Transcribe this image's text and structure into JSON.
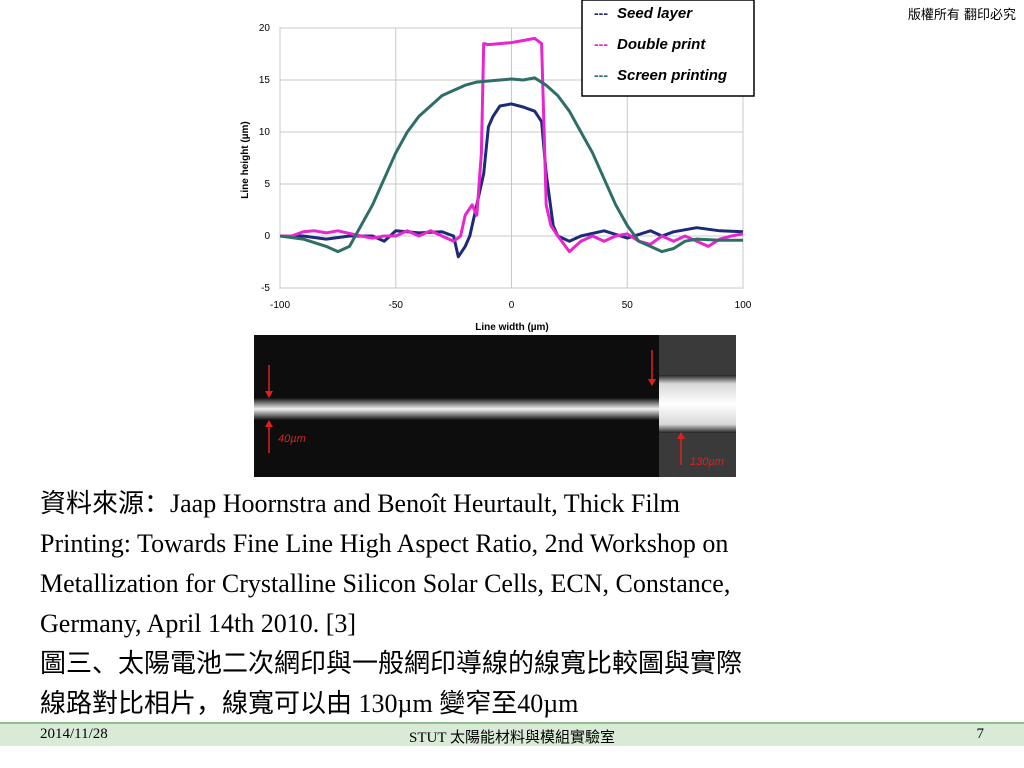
{
  "copyright": "版權所有 翻印必究",
  "chart_data": {
    "type": "line",
    "xlabel": "Line width (µm)",
    "ylabel": "Line height (µm)",
    "xlim": [
      -100,
      100
    ],
    "ylim": [
      -5,
      20
    ],
    "x_ticks": [
      -100,
      -50,
      0,
      50,
      100
    ],
    "y_ticks": [
      -5,
      0,
      5,
      10,
      15,
      20
    ],
    "grid": true,
    "legend_position": "top-right",
    "series": [
      {
        "name": "Seed layer",
        "color": "#1c2a78",
        "points": [
          [
            -100,
            0
          ],
          [
            -90,
            0
          ],
          [
            -80,
            -0.3
          ],
          [
            -70,
            0
          ],
          [
            -60,
            0
          ],
          [
            -55,
            -0.5
          ],
          [
            -50,
            0.5
          ],
          [
            -40,
            0.3
          ],
          [
            -30,
            0.4
          ],
          [
            -25,
            0
          ],
          [
            -23,
            -2
          ],
          [
            -20,
            -1
          ],
          [
            -18,
            0
          ],
          [
            -15,
            3
          ],
          [
            -12,
            6
          ],
          [
            -10,
            10.5
          ],
          [
            -8,
            11.5
          ],
          [
            -5,
            12.5
          ],
          [
            0,
            12.7
          ],
          [
            5,
            12.4
          ],
          [
            10,
            12
          ],
          [
            13,
            11
          ],
          [
            15,
            6
          ],
          [
            18,
            1
          ],
          [
            20,
            0
          ],
          [
            25,
            -0.5
          ],
          [
            30,
            0
          ],
          [
            40,
            0.5
          ],
          [
            50,
            -0.2
          ],
          [
            60,
            0.5
          ],
          [
            65,
            0
          ],
          [
            70,
            0.4
          ],
          [
            80,
            0.8
          ],
          [
            90,
            0.5
          ],
          [
            100,
            0.4
          ]
        ]
      },
      {
        "name": "Double print",
        "color": "#e627cf",
        "points": [
          [
            -100,
            0
          ],
          [
            -95,
            0
          ],
          [
            -90,
            0.4
          ],
          [
            -85,
            0.5
          ],
          [
            -80,
            0.3
          ],
          [
            -75,
            0.5
          ],
          [
            -65,
            0
          ],
          [
            -60,
            -0.2
          ],
          [
            -55,
            0
          ],
          [
            -50,
            0
          ],
          [
            -45,
            0.5
          ],
          [
            -40,
            0
          ],
          [
            -35,
            0.5
          ],
          [
            -30,
            0
          ],
          [
            -25,
            -0.5
          ],
          [
            -22,
            0
          ],
          [
            -20,
            2
          ],
          [
            -17,
            3
          ],
          [
            -15,
            2
          ],
          [
            -13,
            8
          ],
          [
            -12,
            18.5
          ],
          [
            -10,
            18.4
          ],
          [
            -5,
            18.5
          ],
          [
            0,
            18.6
          ],
          [
            5,
            18.8
          ],
          [
            10,
            19
          ],
          [
            13,
            18.5
          ],
          [
            15,
            3
          ],
          [
            17,
            1
          ],
          [
            20,
            0
          ],
          [
            25,
            -1.5
          ],
          [
            30,
            -0.5
          ],
          [
            35,
            0
          ],
          [
            40,
            -0.5
          ],
          [
            45,
            0
          ],
          [
            50,
            0.2
          ],
          [
            55,
            -0.5
          ],
          [
            60,
            -0.8
          ],
          [
            65,
            0
          ],
          [
            70,
            -0.5
          ],
          [
            75,
            0
          ],
          [
            80,
            -0.5
          ],
          [
            85,
            -1
          ],
          [
            90,
            -0.3
          ],
          [
            95,
            0
          ],
          [
            100,
            0.2
          ]
        ]
      },
      {
        "name": "Screen printing",
        "color": "#2e6e66",
        "points": [
          [
            -100,
            0
          ],
          [
            -90,
            -0.3
          ],
          [
            -80,
            -1
          ],
          [
            -75,
            -1.5
          ],
          [
            -70,
            -1
          ],
          [
            -65,
            1
          ],
          [
            -60,
            3
          ],
          [
            -55,
            5.5
          ],
          [
            -50,
            8
          ],
          [
            -45,
            10
          ],
          [
            -40,
            11.5
          ],
          [
            -35,
            12.5
          ],
          [
            -30,
            13.5
          ],
          [
            -25,
            14
          ],
          [
            -20,
            14.5
          ],
          [
            -15,
            14.8
          ],
          [
            -10,
            14.9
          ],
          [
            -5,
            15
          ],
          [
            0,
            15.1
          ],
          [
            5,
            15
          ],
          [
            10,
            15.2
          ],
          [
            15,
            14.5
          ],
          [
            20,
            13.5
          ],
          [
            25,
            12
          ],
          [
            30,
            10
          ],
          [
            35,
            8
          ],
          [
            40,
            5.5
          ],
          [
            45,
            3
          ],
          [
            50,
            1
          ],
          [
            55,
            -0.5
          ],
          [
            60,
            -1
          ],
          [
            65,
            -1.5
          ],
          [
            70,
            -1.2
          ],
          [
            75,
            -0.5
          ],
          [
            80,
            -0.3
          ],
          [
            90,
            -0.4
          ],
          [
            100,
            -0.4
          ]
        ]
      }
    ]
  },
  "photo": {
    "label_left": "40µm",
    "label_right": "130µm"
  },
  "caption": {
    "line1": "資料來源：Jaap Hoornstra and Benoît Heurtault, Thick Film",
    "line2": "Printing: Towards Fine Line High Aspect Ratio, 2nd Workshop on",
    "line3": "Metallization for Crystalline Silicon Solar Cells, ECN, Constance,",
    "line4": "Germany, April 14th 2010. [3]",
    "line5": "圖三、太陽電池二次網印與一般網印導線的線寬比較圖與實際",
    "line6": "線路對比相片，線寬可以由 130µm 變窄至40µm"
  },
  "footer": {
    "date": "2014/11/28",
    "center": "STUT 太陽能材料與模組實驗室",
    "page": "7"
  }
}
